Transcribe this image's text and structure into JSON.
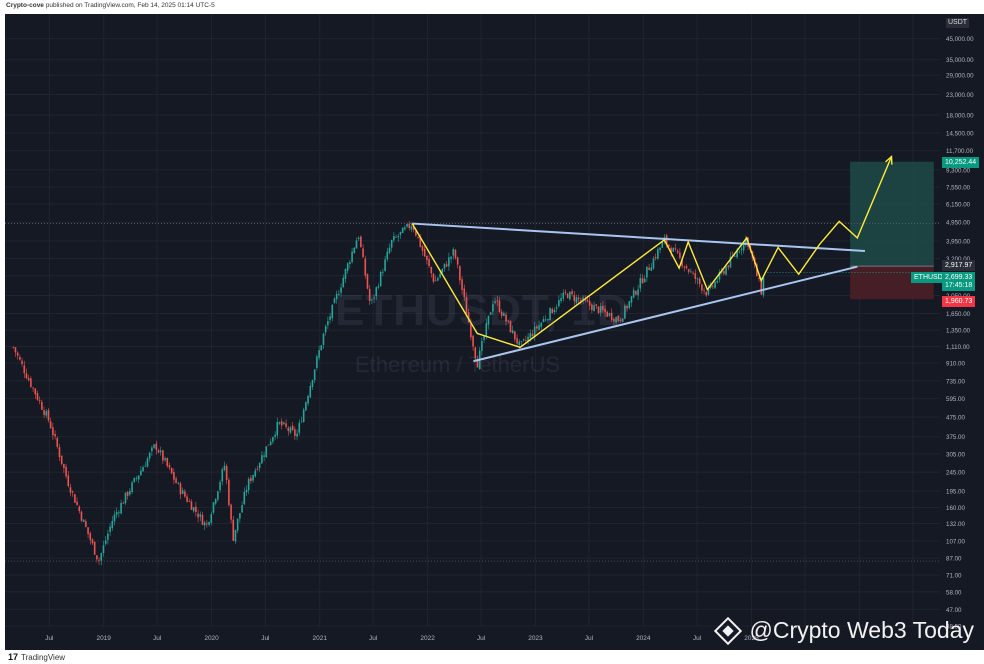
{
  "header": {
    "author": "Crypto-cove",
    "published_text": "published on TradingView.com, Feb 14, 2025 01:14 UTC-5"
  },
  "footer": {
    "logo_text": "TradingView"
  },
  "watermark": {
    "symbol": "ETHUSDT, 1D",
    "name": "Ethereum / TetherUS"
  },
  "brand_overlay": {
    "text": "@Crypto Web3 Today"
  },
  "price_axis": {
    "currency": "USDT"
  },
  "badges": {
    "target": "10,252.44",
    "entry": "2,917.97",
    "symbol": "ETHUSDT",
    "last_price": "2,699.33",
    "countdown": "17:45:18",
    "stop": "1,960.73"
  },
  "colors": {
    "background": "#151924",
    "up": "#26a69a",
    "down": "#ef5350",
    "pattern_line": "#ffeb3b",
    "trend_line": "#a9c6f0",
    "target_zone": "#1d4b46",
    "stop_zone": "#4a1f27",
    "target_badge": "#089981",
    "stop_badge": "#f23645"
  },
  "chart_data": {
    "type": "candlestick",
    "symbol": "ETHUSDT",
    "timeframe": "1D",
    "scale": "log",
    "ylim": [
      38.5,
      55000
    ],
    "y_ticks": [
      "45,000.00",
      "35,000.00",
      "29,000.00",
      "23,000.00",
      "18,000.00",
      "14,500.00",
      "11,700.00",
      "9,300.00",
      "7,550.00",
      "6,150.00",
      "4,950.00",
      "3,950.00",
      "3,200.00",
      "2,600.00",
      "2,050.00",
      "1,650.00",
      "1,350.00",
      "1,110.00",
      "910.00",
      "735.00",
      "595.00",
      "475.00",
      "375.00",
      "305.00",
      "245.00",
      "195.00",
      "160.00",
      "132.00",
      "107.00",
      "87.00",
      "71.00",
      "58.00",
      "47.00",
      "38.50"
    ],
    "x_ticks": [
      "Jul",
      "2019",
      "Jul",
      "2020",
      "Jul",
      "2021",
      "Jul",
      "2022",
      "Jul",
      "2023",
      "Jul",
      "2024",
      "Jul",
      "2025"
    ],
    "x_range": [
      "2018-02",
      "2026-10"
    ],
    "price_path": [
      {
        "date": "2018-03-01",
        "price": 1100
      },
      {
        "date": "2018-05-01",
        "price": 700
      },
      {
        "date": "2018-07-01",
        "price": 450
      },
      {
        "date": "2018-09-01",
        "price": 220
      },
      {
        "date": "2018-12-15",
        "price": 84
      },
      {
        "date": "2019-02-01",
        "price": 140
      },
      {
        "date": "2019-06-25",
        "price": 340
      },
      {
        "date": "2019-09-15",
        "price": 200
      },
      {
        "date": "2019-12-15",
        "price": 128
      },
      {
        "date": "2020-02-15",
        "price": 270
      },
      {
        "date": "2020-03-13",
        "price": 110
      },
      {
        "date": "2020-05-01",
        "price": 210
      },
      {
        "date": "2020-08-15",
        "price": 440
      },
      {
        "date": "2020-10-15",
        "price": 380
      },
      {
        "date": "2021-01-15",
        "price": 1300
      },
      {
        "date": "2021-05-12",
        "price": 4300
      },
      {
        "date": "2021-06-22",
        "price": 1800
      },
      {
        "date": "2021-09-01",
        "price": 3900
      },
      {
        "date": "2021-11-10",
        "price": 4870
      },
      {
        "date": "2022-01-25",
        "price": 2400
      },
      {
        "date": "2022-04-01",
        "price": 3500
      },
      {
        "date": "2022-06-18",
        "price": 900
      },
      {
        "date": "2022-08-13",
        "price": 2000
      },
      {
        "date": "2022-11-10",
        "price": 1100
      },
      {
        "date": "2023-04-15",
        "price": 2100
      },
      {
        "date": "2023-10-12",
        "price": 1530
      },
      {
        "date": "2024-03-12",
        "price": 4000
      },
      {
        "date": "2024-08-05",
        "price": 2100
      },
      {
        "date": "2024-12-16",
        "price": 4100
      },
      {
        "date": "2025-02-03",
        "price": 2150
      },
      {
        "date": "2025-02-14",
        "price": 2699
      }
    ],
    "yellow_pattern": [
      {
        "date": "2021-11-10",
        "price": 4870
      },
      {
        "date": "2022-06-18",
        "price": 1300
      },
      {
        "date": "2022-11-10",
        "price": 1100
      },
      {
        "date": "2024-03-12",
        "price": 4000
      },
      {
        "date": "2024-05-01",
        "price": 2850
      },
      {
        "date": "2024-06-01",
        "price": 3900
      },
      {
        "date": "2024-08-05",
        "price": 2200
      },
      {
        "date": "2024-12-16",
        "price": 4100
      },
      {
        "date": "2025-02-03",
        "price": 2450
      },
      {
        "date": "2025-04-01",
        "price": 3650
      },
      {
        "date": "2025-06-10",
        "price": 2650
      },
      {
        "date": "2025-08-20",
        "price": 3800
      },
      {
        "date": "2025-10-25",
        "price": 5000
      },
      {
        "date": "2025-12-25",
        "price": 4100
      },
      {
        "date": "2026-04-20",
        "price": 10900
      }
    ],
    "trend_lines": [
      {
        "name": "resistance",
        "from": {
          "date": "2021-11-10",
          "price": 4870
        },
        "to": {
          "date": "2026-01-20",
          "price": 3500
        }
      },
      {
        "name": "support",
        "from": {
          "date": "2022-06-05",
          "price": 930
        },
        "to": {
          "date": "2025-12-25",
          "price": 2900
        }
      }
    ],
    "position": {
      "start": "2025-12-01",
      "end": "2026-09-10",
      "target": 10252.44,
      "entry": 2917.97,
      "stop": 1960.73
    },
    "dotted_levels": [
      4870,
      84
    ],
    "current_price": 2699.33
  }
}
